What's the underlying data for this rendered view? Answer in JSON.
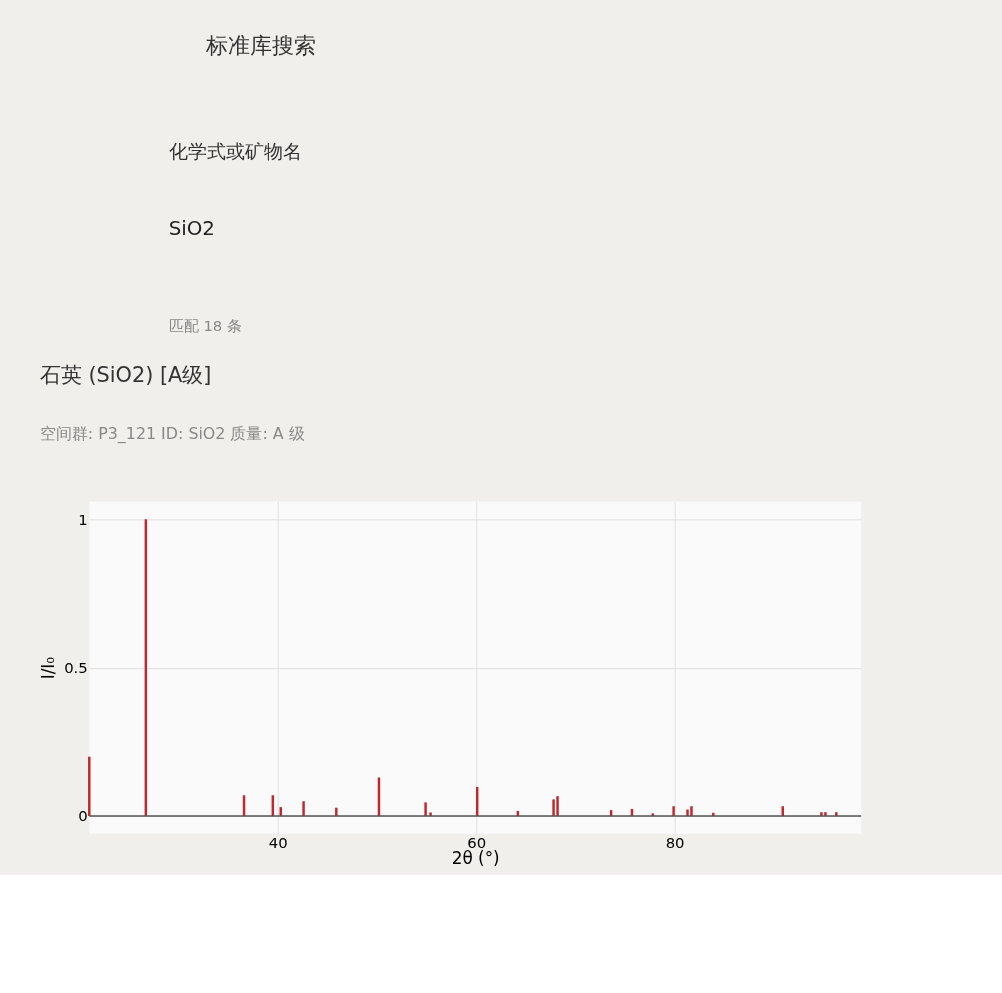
{
  "chart_data": {
    "type": "bar",
    "title": "石英 (SiO2) [A级]",
    "subtitle": "空间群: P3_121 ID: SiO2 质量: A 级",
    "xlabel": "2θ (°)",
    "ylabel": "I/I₀",
    "annotations": [
      "标准库搜索",
      "化学式或矿物名",
      "SiO2",
      "匹配 18 条"
    ],
    "x": [
      21.0,
      26.7,
      36.6,
      39.5,
      40.3,
      42.6,
      45.9,
      50.2,
      54.9,
      55.4,
      60.1,
      64.2,
      67.8,
      68.2,
      73.6,
      75.7,
      77.8,
      79.9,
      81.3,
      81.7,
      83.9,
      90.9,
      94.8,
      95.2,
      96.3
    ],
    "values": [
      0.2,
      1.0,
      0.07,
      0.07,
      0.03,
      0.05,
      0.028,
      0.13,
      0.046,
      0.012,
      0.098,
      0.017,
      0.056,
      0.067,
      0.02,
      0.024,
      0.009,
      0.033,
      0.022,
      0.033,
      0.011,
      0.033,
      0.013,
      0.013,
      0.013
    ],
    "color": "#c0282d",
    "xlim": [
      21,
      98.8
    ],
    "xticks": [
      40,
      60,
      80
    ],
    "ylim": [
      -0.06,
      1.06
    ],
    "yticks": [
      0,
      0.5,
      1
    ],
    "grid": true,
    "ref_lines": [
      {
        "axis": "y",
        "value": 0,
        "color": "#555555"
      }
    ]
  }
}
